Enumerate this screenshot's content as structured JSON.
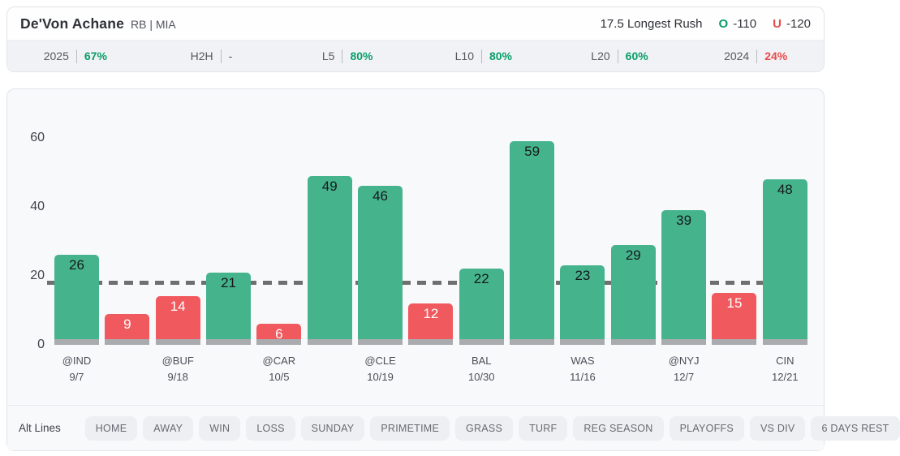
{
  "header": {
    "player": "De'Von Achane",
    "position_team": "RB | MIA",
    "prop_line": "17.5 Longest Rush",
    "over": {
      "label": "O",
      "odds": "-110"
    },
    "under": {
      "label": "U",
      "odds": "-120"
    }
  },
  "splits": [
    {
      "label": "2025",
      "value": "67%",
      "tone": "green"
    },
    {
      "label": "H2H",
      "value": "-",
      "tone": "neutral"
    },
    {
      "label": "L5",
      "value": "80%",
      "tone": "green"
    },
    {
      "label": "L10",
      "value": "80%",
      "tone": "green"
    },
    {
      "label": "L20",
      "value": "60%",
      "tone": "green"
    },
    {
      "label": "2024",
      "value": "24%",
      "tone": "red"
    }
  ],
  "chart_data": {
    "type": "bar",
    "title": "",
    "xlabel": "",
    "ylabel": "",
    "ylim": [
      0,
      60
    ],
    "yticks": [
      0,
      20,
      40,
      60
    ],
    "grid": false,
    "threshold": 17.5,
    "games": [
      {
        "value": 26,
        "over": true,
        "team": "@IND",
        "date": "9/7"
      },
      {
        "value": 9,
        "over": false
      },
      {
        "value": 14,
        "over": false,
        "team": "@BUF",
        "date": "9/18"
      },
      {
        "value": 21,
        "over": true
      },
      {
        "value": 6,
        "over": false,
        "team": "@CAR",
        "date": "10/5"
      },
      {
        "value": 49,
        "over": true
      },
      {
        "value": 46,
        "over": true,
        "team": "@CLE",
        "date": "10/19"
      },
      {
        "value": 12,
        "over": false
      },
      {
        "value": 22,
        "over": true,
        "team": "BAL",
        "date": "10/30"
      },
      {
        "value": 59,
        "over": true
      },
      {
        "value": 23,
        "over": true,
        "team": "WAS",
        "date": "11/16"
      },
      {
        "value": 29,
        "over": true
      },
      {
        "value": 39,
        "over": true,
        "team": "@NYJ",
        "date": "12/7"
      },
      {
        "value": 15,
        "over": false
      },
      {
        "value": 48,
        "over": true,
        "team": "CIN",
        "date": "12/21"
      }
    ],
    "colors": {
      "over": "#45b48d",
      "under": "#f0595d",
      "base_strip": "#a9abae",
      "threshold_line": "#6f6f6f",
      "green_text": "#089e68",
      "red_text": "#e64c4c"
    }
  },
  "filters": {
    "alt_lines_label": "Alt Lines",
    "chips": [
      "HOME",
      "AWAY",
      "WIN",
      "LOSS",
      "SUNDAY",
      "PRIMETIME",
      "GRASS",
      "TURF",
      "REG SEASON",
      "PLAYOFFS",
      "VS DIV",
      "6 DAYS REST"
    ]
  }
}
